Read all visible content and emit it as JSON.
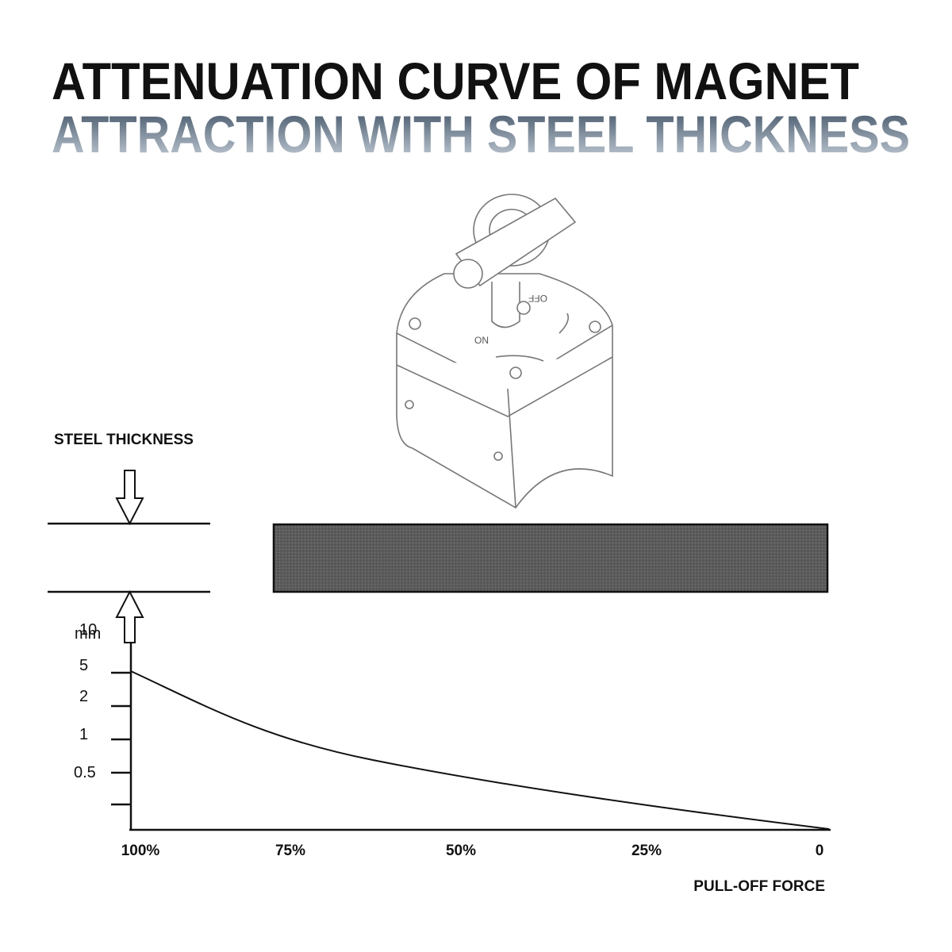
{
  "header": {
    "title_line1": "ATTENUATION CURVE OF MAGNET",
    "title_line2": "ATTRACTION WITH STEEL THICKNESS"
  },
  "device": {
    "label_off": "OFF",
    "label_on": "ON"
  },
  "steel_thickness_label": "STEEL THICKNESS",
  "y_axis": {
    "unit": "mm",
    "ticks": [
      "10",
      "5",
      "2",
      "1",
      "0.5"
    ]
  },
  "x_axis": {
    "ticks": [
      "100%",
      "75%",
      "50%",
      "25%",
      "0"
    ],
    "title": "PULL-OFF FORCE"
  }
}
